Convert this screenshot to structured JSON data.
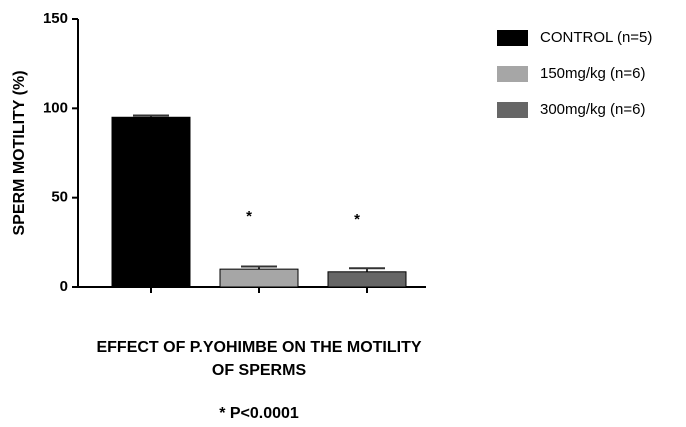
{
  "chart_data": {
    "type": "bar",
    "ylabel": "SPERM MOTILITY (%)",
    "xlabel": [
      "EFFECT OF P.YOHIMBE ON THE MOTILITY",
      "OF SPERMS"
    ],
    "footnote": "* P<0.0001",
    "ylim": [
      0,
      150
    ],
    "yticks": [
      0,
      50,
      100,
      150
    ],
    "series": [
      {
        "name": "CONTROL (n=5)",
        "color": "#000000",
        "values": [
          95
        ],
        "errors": [
          1
        ]
      },
      {
        "name": "150mg/kg  (n=6)",
        "color": "#a6a6a6",
        "values": [
          10
        ],
        "errors": [
          1.5
        ],
        "marker": "*"
      },
      {
        "name": "300mg/kg  (n=6)",
        "color": "#666666",
        "values": [
          8.5
        ],
        "errors": [
          2
        ],
        "marker": "*"
      }
    ]
  }
}
